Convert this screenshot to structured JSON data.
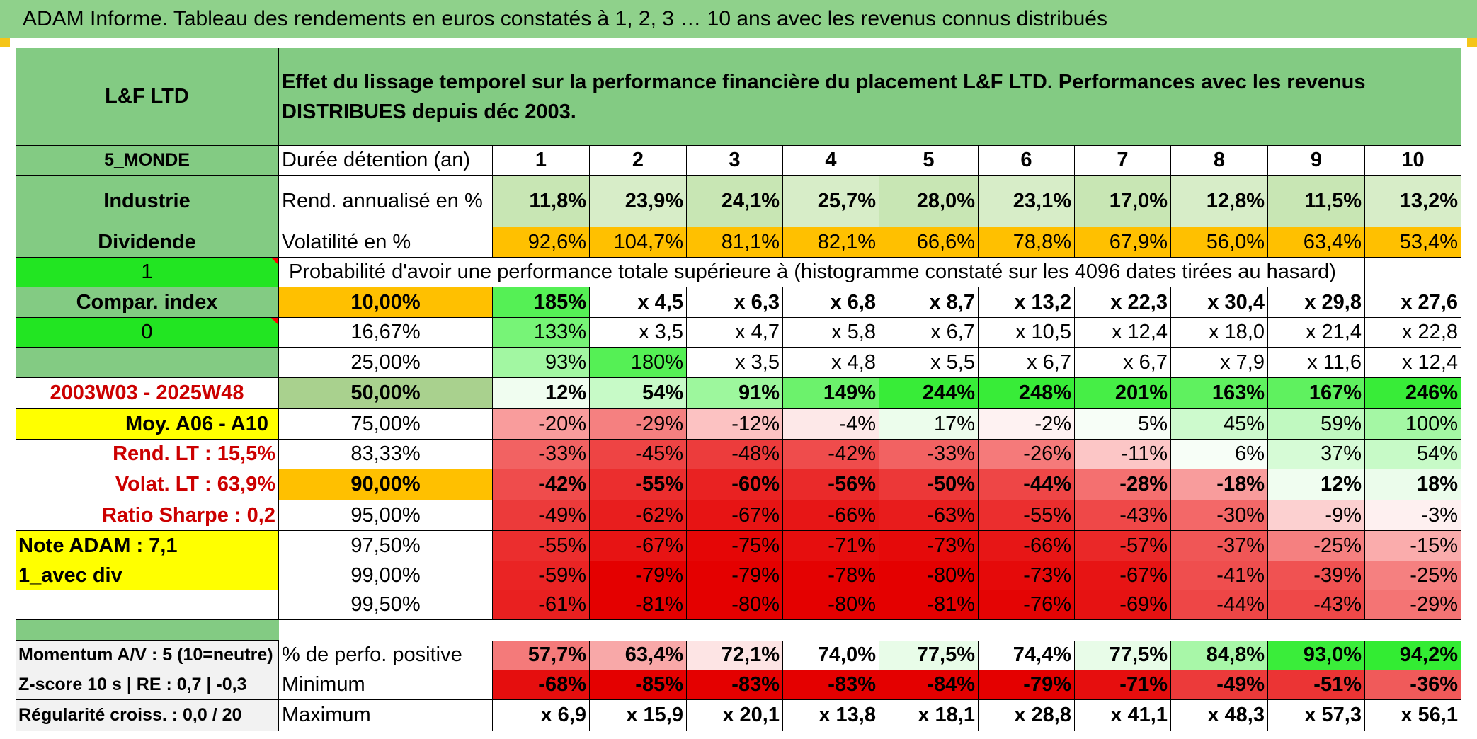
{
  "title": "ADAM Informe. Tableau des rendements en euros constatés à 1, 2, 3 … 10 ans avec les revenus connus distribués",
  "fund_name": "L&F LTD",
  "header_text": "Effet du lissage temporel sur la performance financière du placement L&F LTD. Performances avec les revenus DISTRIBUES depuis déc 2003.",
  "left": {
    "category": "5_MONDE",
    "sector": "Industrie",
    "income": "Dividende",
    "selector1": "1",
    "compar_index": "Compar. index",
    "selector2": "0",
    "period": "2003W03 - 2025W48",
    "moy": "Moy. A06 - A10",
    "rend_lt": "Rend. LT :    15,5%",
    "volat_lt": "Volat. LT :    63,9%",
    "ratio_sharpe": "Ratio Sharpe :    0,2",
    "note_adam": "Note ADAM : 7,1",
    "avec_div": "1_avec div",
    "momentum": "Momentum A/V : 5 (10=neutre)",
    "zscore": "Z-score 10 s | RE : 0,7 | -0,3",
    "regularite": "Régularité croiss. : 0,0 / 20"
  },
  "duree_label": "Durée détention (an)",
  "years": [
    "1",
    "2",
    "3",
    "4",
    "5",
    "6",
    "7",
    "8",
    "9",
    "10"
  ],
  "rend_label": "Rend. annualisé en %",
  "rend": [
    "11,8%",
    "23,9%",
    "24,1%",
    "25,7%",
    "28,0%",
    "23,1%",
    "17,0%",
    "12,8%",
    "11,5%",
    "13,2%"
  ],
  "vol_label": "Volatilité en %",
  "vol": [
    "92,6%",
    "104,7%",
    "81,1%",
    "82,1%",
    "66,6%",
    "78,8%",
    "67,9%",
    "56,0%",
    "63,4%",
    "53,4%"
  ],
  "proba_text": "Probabilité d'avoir une performance totale supérieure à (histogramme constaté sur les 4096 dates tirées au hasard)",
  "colors": {
    "header_green": "#83cb83",
    "light_green": "#c8e6b4",
    "orange": "#ffc000",
    "bright_green": "#22e522",
    "yellow": "#ffff00",
    "red_text": "#cc0000"
  },
  "prob_rows": [
    {
      "label": "10,00%",
      "bold": true,
      "values": [
        "185%",
        "x 4,5",
        "x 6,3",
        "x 6,8",
        "x 8,7",
        "x 13,2",
        "x 22,3",
        "x 30,4",
        "x 29,8",
        "x 27,6"
      ],
      "colors": [
        "#55f055",
        "#ffffff",
        "#ffffff",
        "#ffffff",
        "#ffffff",
        "#ffffff",
        "#ffffff",
        "#ffffff",
        "#ffffff",
        "#ffffff"
      ]
    },
    {
      "label": "16,67%",
      "bold": false,
      "values": [
        "133%",
        "x 3,5",
        "x 4,7",
        "x 5,8",
        "x 6,7",
        "x 10,5",
        "x 12,4",
        "x 18,0",
        "x 21,4",
        "x 22,8"
      ],
      "colors": [
        "#77f477",
        "#ffffff",
        "#ffffff",
        "#ffffff",
        "#ffffff",
        "#ffffff",
        "#ffffff",
        "#ffffff",
        "#ffffff",
        "#ffffff"
      ]
    },
    {
      "label": "25,00%",
      "bold": false,
      "values": [
        "93%",
        "180%",
        "x 3,5",
        "x 4,8",
        "x 5,5",
        "x 6,7",
        "x 6,7",
        "x 7,9",
        "x 11,6",
        "x 12,4"
      ],
      "colors": [
        "#a2f7a2",
        "#55f055",
        "#ffffff",
        "#ffffff",
        "#ffffff",
        "#ffffff",
        "#ffffff",
        "#ffffff",
        "#ffffff",
        "#ffffff"
      ]
    },
    {
      "label": "50,00%",
      "bold": true,
      "big": true,
      "values": [
        "12%",
        "54%",
        "91%",
        "149%",
        "244%",
        "248%",
        "201%",
        "163%",
        "167%",
        "246%"
      ],
      "colors": [
        "#f0fdf0",
        "#c7fac7",
        "#9df79d",
        "#6cf26c",
        "#38ec38",
        "#38ec38",
        "#46ee46",
        "#5ff15f",
        "#5ff15f",
        "#38ec38"
      ]
    },
    {
      "label": "75,00%",
      "bold": false,
      "values": [
        "-20%",
        "-29%",
        "-12%",
        "-4%",
        "17%",
        "-2%",
        "5%",
        "45%",
        "59%",
        "100%"
      ],
      "colors": [
        "#f99c9c",
        "#f58080",
        "#fcc2c2",
        "#fde8e8",
        "#ecfdec",
        "#fef2f2",
        "#f7fef7",
        "#cdfacd",
        "#c0f9c0",
        "#a4f7a4"
      ]
    },
    {
      "label": "83,33%",
      "bold": false,
      "values": [
        "-33%",
        "-45%",
        "-48%",
        "-42%",
        "-33%",
        "-26%",
        "-11%",
        "6%",
        "37%",
        "54%"
      ],
      "colors": [
        "#f26262",
        "#ee4444",
        "#ec3c3c",
        "#ef4c4c",
        "#f26262",
        "#f57a7a",
        "#fcc6c6",
        "#f7fef7",
        "#d6fbd6",
        "#c7fac7"
      ]
    },
    {
      "label": "90,00%",
      "bold": true,
      "values": [
        "-42%",
        "-55%",
        "-60%",
        "-56%",
        "-50%",
        "-44%",
        "-28%",
        "-18%",
        "12%",
        "18%"
      ],
      "colors": [
        "#ef4c4c",
        "#eb2e2e",
        "#e92222",
        "#ea2a2a",
        "#ec3838",
        "#ee4646",
        "#f47070",
        "#f89c9c",
        "#f0fdf0",
        "#ebfceb"
      ]
    },
    {
      "label": "95,00%",
      "bold": false,
      "values": [
        "-49%",
        "-62%",
        "-67%",
        "-66%",
        "-63%",
        "-55%",
        "-43%",
        "-30%",
        "-9%",
        "-3%"
      ],
      "colors": [
        "#ec3a3a",
        "#e81e1e",
        "#e71414",
        "#e71616",
        "#e81c1c",
        "#eb2e2e",
        "#ef4848",
        "#f36868",
        "#fcd0d0",
        "#fef0f0"
      ]
    },
    {
      "label": "97,50%",
      "bold": false,
      "values": [
        "-55%",
        "-67%",
        "-75%",
        "-71%",
        "-73%",
        "-66%",
        "-57%",
        "-37%",
        "-25%",
        "-15%"
      ],
      "colors": [
        "#eb2e2e",
        "#e71414",
        "#e50606",
        "#e60e0e",
        "#e50a0a",
        "#e71616",
        "#ea2828",
        "#f05656",
        "#f58080",
        "#faacac"
      ]
    },
    {
      "label": "99,00%",
      "bold": false,
      "values": [
        "-59%",
        "-79%",
        "-79%",
        "-78%",
        "-80%",
        "-73%",
        "-67%",
        "-41%",
        "-39%",
        "-25%"
      ],
      "colors": [
        "#ea2424",
        "#e40000",
        "#e40000",
        "#e40202",
        "#e40000",
        "#e50a0a",
        "#e71414",
        "#ef4e4e",
        "#f05252",
        "#f58080"
      ]
    },
    {
      "label": "99,50%",
      "bold": false,
      "values": [
        "-61%",
        "-81%",
        "-80%",
        "-80%",
        "-81%",
        "-76%",
        "-69%",
        "-44%",
        "-43%",
        "-29%"
      ],
      "colors": [
        "#e92020",
        "#e40000",
        "#e40000",
        "#e40000",
        "#e40000",
        "#e40404",
        "#e61212",
        "#ee4646",
        "#ef4848",
        "#f47474"
      ]
    }
  ],
  "pct_positive_label": "% de perfo. positive",
  "pct_positive": [
    "57,7%",
    "63,4%",
    "72,1%",
    "74,0%",
    "77,5%",
    "74,4%",
    "77,5%",
    "84,8%",
    "93,0%",
    "94,2%"
  ],
  "pct_positive_colors": [
    "#f47a7a",
    "#f8a8a8",
    "#fde4e4",
    "#ffffff",
    "#e8fce8",
    "#ffffff",
    "#e8fce8",
    "#a8f7a8",
    "#3aed3a",
    "#33ec33"
  ],
  "min_label": "Minimum",
  "min": [
    "-68%",
    "-85%",
    "-83%",
    "-83%",
    "-84%",
    "-79%",
    "-71%",
    "-49%",
    "-51%",
    "-36%"
  ],
  "min_colors": [
    "#e50e0e",
    "#e40000",
    "#e40000",
    "#e40000",
    "#e40000",
    "#e40000",
    "#e60e0e",
    "#ec3a3a",
    "#eb3434",
    "#f05a5a"
  ],
  "max_label": "Maximum",
  "max": [
    "x 6,9",
    "x 15,9",
    "x 20,1",
    "x 13,8",
    "x 18,1",
    "x 28,8",
    "x 41,1",
    "x 48,3",
    "x 57,3",
    "x 56,1"
  ]
}
